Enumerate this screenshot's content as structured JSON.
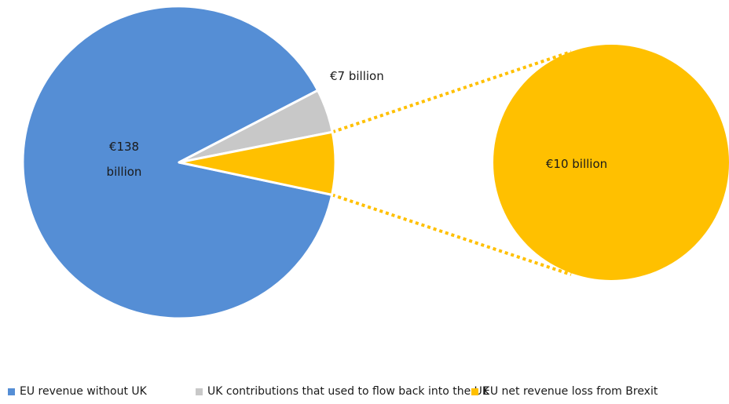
{
  "chart_data": {
    "type": "pie",
    "title": "",
    "slices": [
      {
        "name": "EU revenue without UK",
        "value": 138,
        "label": "€138 billion",
        "color": "#558ED5"
      },
      {
        "name": "UK contributions that used to flow back into the UK",
        "value": 7,
        "label": "€7 billion",
        "color": "#C8C8C8"
      },
      {
        "name": "EU net revenue loss from Brexit",
        "value": 10,
        "label": "€10 billion",
        "color": "#FFC000"
      }
    ],
    "exploded_slice": "EU net revenue loss from Brexit",
    "legend_position": "bottom"
  },
  "labels": {
    "main": [
      "€138",
      "billion"
    ],
    "small": "€7 billion",
    "detail": "€10 billion"
  },
  "legend": [
    {
      "label": "EU revenue without UK",
      "color": "#558ED5"
    },
    {
      "label": "UK contributions that used to flow back into the UK",
      "color": "#C8C8C8"
    },
    {
      "label": "EU net revenue loss from Brexit",
      "color": "#FFC000"
    }
  ]
}
